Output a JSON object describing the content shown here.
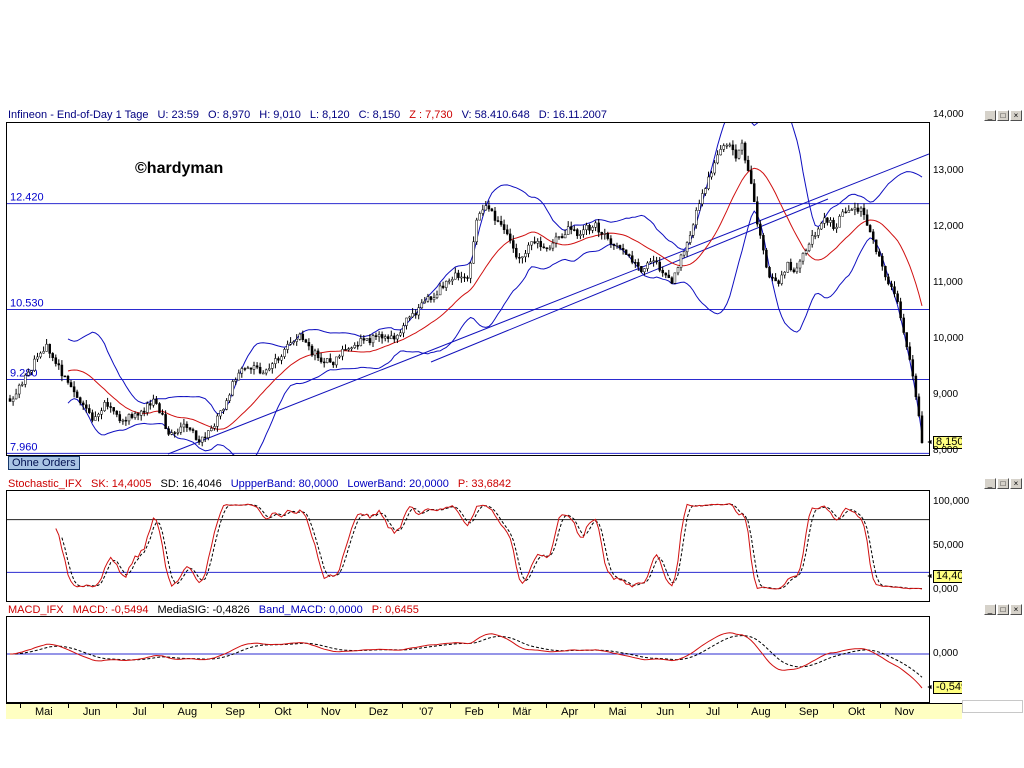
{
  "main_header": {
    "segments": [
      {
        "text": "Infineon - End-of-Day 1 Tage",
        "color": "#000080"
      },
      {
        "text": "U: 23:59",
        "color": "#000080"
      },
      {
        "text": "O: 8,970",
        "color": "#000080"
      },
      {
        "text": "H: 9,010",
        "color": "#000080"
      },
      {
        "text": "L: 8,120",
        "color": "#000080"
      },
      {
        "text": "C: 8,150",
        "color": "#000080"
      },
      {
        "text": "Z : 7,730",
        "color": "#cc0000"
      },
      {
        "text": "V: 58.410.648",
        "color": "#000080"
      },
      {
        "text": "D: 16.11.2007",
        "color": "#000080"
      }
    ]
  },
  "window_controls": {
    "minimize": "_",
    "maximize": "□",
    "close": "×"
  },
  "main_chart": {
    "watermark": "©hardyman",
    "order_button_label": "Ohne Orders",
    "axis_labels": [
      {
        "text": "14,000",
        "value": 14
      },
      {
        "text": "13,000",
        "value": 13
      },
      {
        "text": "12,000",
        "value": 12
      },
      {
        "text": "11,000",
        "value": 11
      },
      {
        "text": "10,000",
        "value": 10
      },
      {
        "text": "9,000",
        "value": 9
      },
      {
        "text": "8,000",
        "value": 8
      }
    ],
    "price_tag": "8,150"
  },
  "stochastic": {
    "segments": [
      {
        "text": "Stochastic_IFX",
        "color": "#cc0000"
      },
      {
        "text": "SK: 14,4005",
        "color": "#cc0000"
      },
      {
        "text": "SD: 16,4046",
        "color": "#000000"
      },
      {
        "text": "UppperBand: 80,0000",
        "color": "#0000c0"
      },
      {
        "text": "LowerBand: 20,0000",
        "color": "#0000c0"
      },
      {
        "text": "P: 33,6842",
        "color": "#cc0000"
      }
    ],
    "axis_labels": [
      {
        "text": "100,000",
        "value": 100
      },
      {
        "text": "50,000",
        "value": 50
      },
      {
        "text": "0,000",
        "value": 0
      }
    ],
    "tag": "14,400"
  },
  "macd": {
    "segments": [
      {
        "text": "MACD_IFX",
        "color": "#cc0000"
      },
      {
        "text": "MACD: -0,5494",
        "color": "#cc0000"
      },
      {
        "text": "MediaSIG: -0,4826",
        "color": "#000000"
      },
      {
        "text": "Band_MACD: 0,0000",
        "color": "#0000c0"
      },
      {
        "text": "P: 0,6455",
        "color": "#cc0000"
      }
    ],
    "axis_labels": [
      {
        "text": "0,000",
        "value": 0
      }
    ],
    "tag": "-0,549"
  },
  "time_axis": {
    "months": [
      "Mai",
      "Jun",
      "Jul",
      "Aug",
      "Sep",
      "Okt",
      "Nov",
      "Dez",
      "'07",
      "Feb",
      "Mär",
      "Apr",
      "Mai",
      "Jun",
      "Jul",
      "Aug",
      "Sep",
      "Okt",
      "Nov"
    ]
  },
  "chart_data": {
    "type": "candlestick",
    "title": "Infineon - End-of-Day 1 Tage",
    "legend": [
      "Candles (daily OHLC)",
      "Bollinger upper (blue)",
      "Bollinger lower (blue)",
      "Middle MA (red)",
      "Trendlines (blue)"
    ],
    "ohlc_last": {
      "open": 8.97,
      "high": 9.01,
      "low": 8.12,
      "close": 8.15,
      "z": 7.73,
      "volume": "58.410.648",
      "date": "16.11.2007"
    },
    "y_range": [
      7.93,
      13.86
    ],
    "x_range": [
      "Mai 2006",
      "Nov 2007"
    ],
    "levels": [
      {
        "label": "12.420",
        "value": 12.42
      },
      {
        "label": "10.530",
        "value": 10.53
      },
      {
        "label": "9.280",
        "value": 9.28
      },
      {
        "label": "7.960",
        "value": 7.96
      }
    ],
    "trendlines": [
      {
        "from": [
          0.175,
          7.95
        ],
        "to": [
          1.0,
          13.3
        ]
      },
      {
        "from": [
          0.46,
          9.6
        ],
        "to": [
          0.89,
          12.5
        ]
      }
    ],
    "price_anchors": [
      [
        0.0,
        8.9
      ],
      [
        0.018,
        9.35
      ],
      [
        0.039,
        9.9
      ],
      [
        0.055,
        9.45
      ],
      [
        0.075,
        8.9
      ],
      [
        0.091,
        8.55
      ],
      [
        0.105,
        8.85
      ],
      [
        0.12,
        8.55
      ],
      [
        0.143,
        8.65
      ],
      [
        0.158,
        8.95
      ],
      [
        0.175,
        8.3
      ],
      [
        0.195,
        8.45
      ],
      [
        0.207,
        8.18
      ],
      [
        0.222,
        8.4
      ],
      [
        0.235,
        8.8
      ],
      [
        0.247,
        9.3
      ],
      [
        0.262,
        9.55
      ],
      [
        0.278,
        9.4
      ],
      [
        0.299,
        9.75
      ],
      [
        0.317,
        10.05
      ],
      [
        0.333,
        9.75
      ],
      [
        0.351,
        9.55
      ],
      [
        0.368,
        9.8
      ],
      [
        0.385,
        9.95
      ],
      [
        0.403,
        10.05
      ],
      [
        0.42,
        10.0
      ],
      [
        0.438,
        10.4
      ],
      [
        0.455,
        10.65
      ],
      [
        0.472,
        10.9
      ],
      [
        0.49,
        11.15
      ],
      [
        0.503,
        11.1
      ],
      [
        0.512,
        12.2
      ],
      [
        0.522,
        12.35
      ],
      [
        0.538,
        12.05
      ],
      [
        0.552,
        11.6
      ],
      [
        0.559,
        11.4
      ],
      [
        0.575,
        11.75
      ],
      [
        0.59,
        11.65
      ],
      [
        0.611,
        11.95
      ],
      [
        0.625,
        11.9
      ],
      [
        0.64,
        12.05
      ],
      [
        0.652,
        11.85
      ],
      [
        0.663,
        11.7
      ],
      [
        0.678,
        11.45
      ],
      [
        0.692,
        11.25
      ],
      [
        0.705,
        11.45
      ],
      [
        0.715,
        11.15
      ],
      [
        0.726,
        11.05
      ],
      [
        0.74,
        11.6
      ],
      [
        0.752,
        12.25
      ],
      [
        0.767,
        12.9
      ],
      [
        0.778,
        13.4
      ],
      [
        0.787,
        13.55
      ],
      [
        0.795,
        13.25
      ],
      [
        0.802,
        13.5
      ],
      [
        0.812,
        12.8
      ],
      [
        0.822,
        11.85
      ],
      [
        0.832,
        11.1
      ],
      [
        0.842,
        10.95
      ],
      [
        0.852,
        11.35
      ],
      [
        0.862,
        11.2
      ],
      [
        0.871,
        11.55
      ],
      [
        0.882,
        11.9
      ],
      [
        0.893,
        12.15
      ],
      [
        0.905,
        12.0
      ],
      [
        0.916,
        12.3
      ],
      [
        0.923,
        12.25
      ],
      [
        0.932,
        12.35
      ],
      [
        0.942,
        11.95
      ],
      [
        0.952,
        11.5
      ],
      [
        0.962,
        11.05
      ],
      [
        0.975,
        10.55
      ],
      [
        0.982,
        10.0
      ],
      [
        0.988,
        9.55
      ],
      [
        0.993,
        9.05
      ],
      [
        1.0,
        8.15
      ]
    ],
    "indicators": {
      "bollinger": {
        "window": 20,
        "mult": 2
      },
      "stochastic": {
        "SK": 14.4005,
        "SD": 16.4046,
        "UppperBand": 80.0,
        "LowerBand": 20.0,
        "P": 33.6842,
        "range": [
          0,
          100
        ]
      },
      "macd": {
        "MACD": -0.5494,
        "MediaSIG": -0.4826,
        "Band_MACD": 0.0,
        "P": 0.6455
      }
    }
  }
}
